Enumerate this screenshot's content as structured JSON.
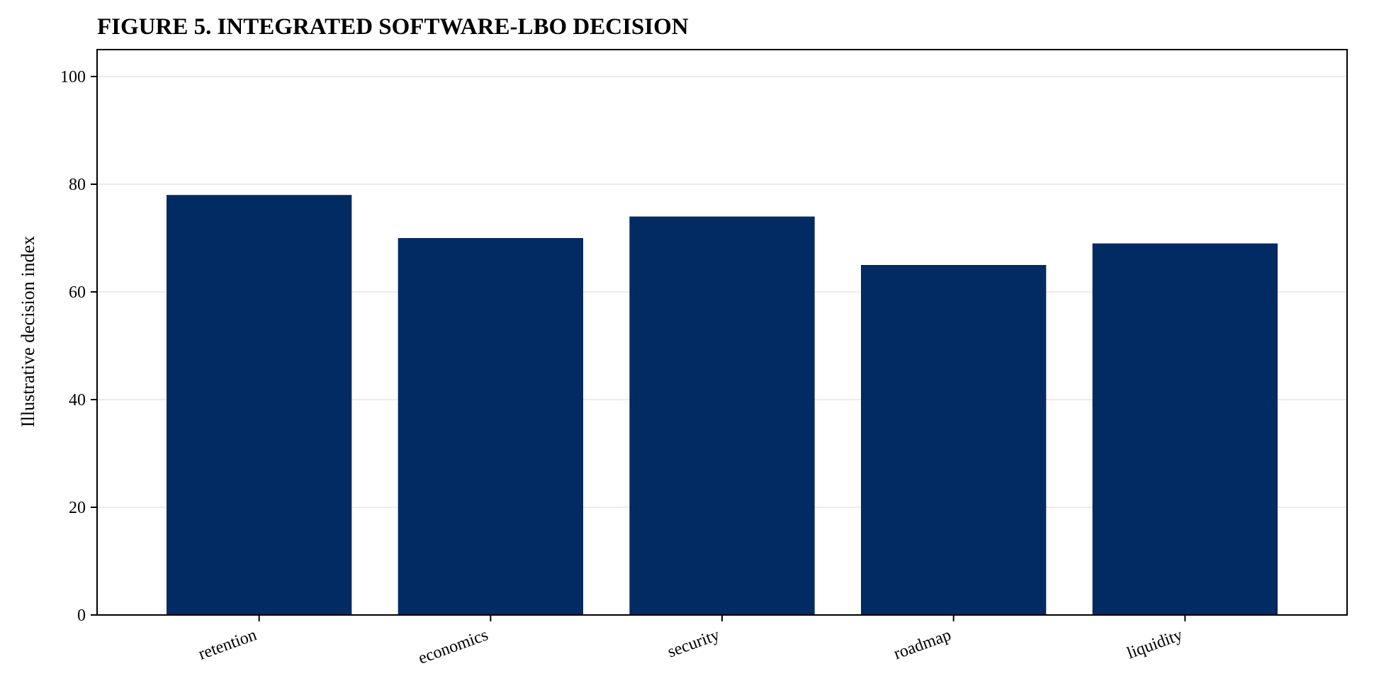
{
  "chart_data": {
    "type": "bar",
    "title": "FIGURE 5. INTEGRATED SOFTWARE-LBO DECISION",
    "xlabel": "",
    "ylabel": "Illustrative decision index",
    "categories": [
      "retention",
      "economics",
      "security",
      "roadmap",
      "liquidity"
    ],
    "values": [
      78,
      70,
      74,
      65,
      69
    ],
    "ylim": [
      0,
      105
    ],
    "yticks": [
      0,
      20,
      40,
      60,
      80,
      100
    ],
    "bar_color": "#022a63",
    "grid": true,
    "grid_axis": "y",
    "legend": null
  }
}
